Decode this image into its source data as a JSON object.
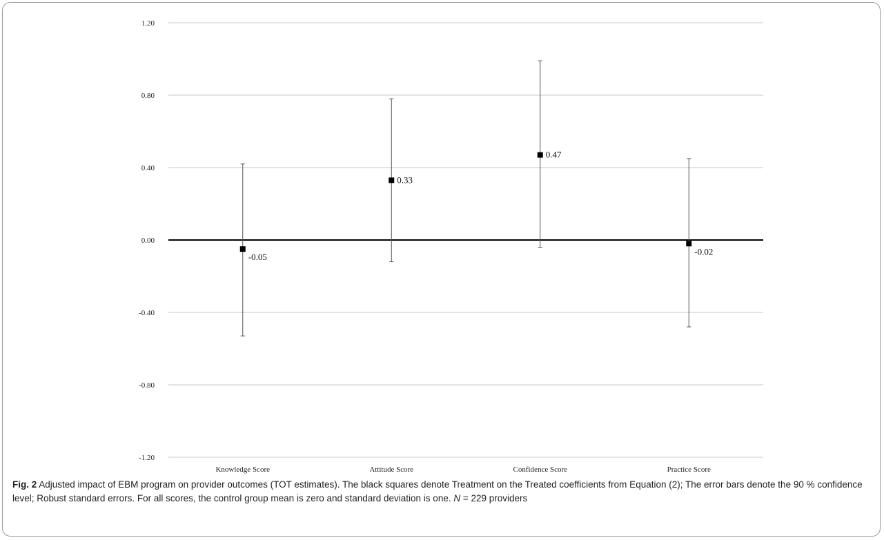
{
  "chart_data": {
    "type": "scatter",
    "title": "",
    "xlabel": "",
    "ylabel": "",
    "ylim": [
      -1.2,
      1.2
    ],
    "yticks": [
      1.2,
      0.8,
      0.4,
      0.0,
      -0.4,
      -0.8,
      -1.2
    ],
    "ytick_labels": [
      "1.20",
      "0.80",
      "0.40",
      "0.00",
      "-0.40",
      "-0.80",
      "-1.20"
    ],
    "categories": [
      "Knowledge Score",
      "Attitude Score",
      "Confidence Score",
      "Practice Score"
    ],
    "points": [
      {
        "category": "Knowledge Score",
        "value": -0.05,
        "label": "-0.05",
        "ci_low": -0.53,
        "ci_high": 0.42
      },
      {
        "category": "Attitude Score",
        "value": 0.33,
        "label": "0.33",
        "ci_low": -0.12,
        "ci_high": 0.78
      },
      {
        "category": "Confidence Score",
        "value": 0.47,
        "label": "0.47",
        "ci_low": -0.04,
        "ci_high": 0.99
      },
      {
        "category": "Practice Score",
        "value": -0.02,
        "label": "-0.02",
        "ci_low": -0.48,
        "ci_high": 0.45
      }
    ],
    "grid": true,
    "zero_line": true,
    "marker_color": "#000000",
    "grid_color": "#c8c8c8"
  },
  "caption": {
    "fig_label": "Fig. 2",
    "text_1": " Adjusted impact of EBM program on provider outcomes (TOT estimates). The black squares denote Treatment on the Treated coefficients from Equation (2); The error bars denote the 90 % confidence level; Robust standard errors. For all scores, the control group mean is zero and standard deviation is one. ",
    "n_symbol": "N",
    "text_2": " = 229 providers"
  }
}
